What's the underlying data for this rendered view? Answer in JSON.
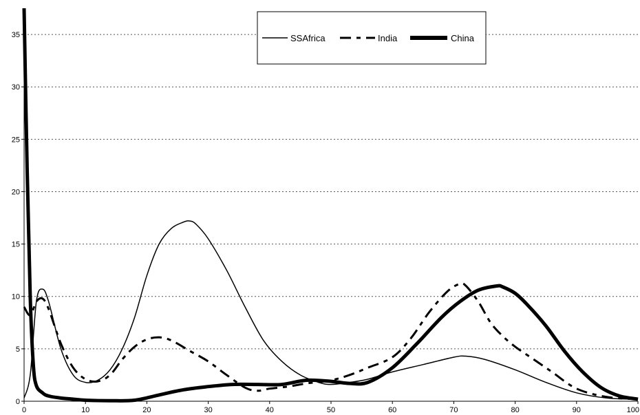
{
  "chart_data": {
    "type": "line",
    "title": "",
    "xlabel": "",
    "ylabel": "",
    "xlim": [
      0,
      100
    ],
    "ylim": [
      0,
      37.5
    ],
    "x_ticks": [
      0,
      10,
      20,
      30,
      40,
      50,
      60,
      70,
      80,
      90,
      100
    ],
    "y_ticks": [
      0,
      5,
      10,
      15,
      20,
      25,
      30,
      35
    ],
    "grid": "horizontal dotted",
    "legend_position": "top-center",
    "series": [
      {
        "name": "SSAfrica",
        "style": "thin-solid",
        "color": "#000000",
        "x": [
          0,
          1,
          2,
          3,
          4,
          6,
          8,
          10,
          12,
          14,
          16,
          18,
          20,
          22,
          24,
          26,
          27,
          28,
          30,
          33,
          36,
          39,
          42,
          45,
          48,
          50,
          53,
          56,
          60,
          65,
          70,
          72,
          75,
          80,
          85,
          90,
          95,
          100
        ],
        "y": [
          0.3,
          2.5,
          9.5,
          10.7,
          9.5,
          5.0,
          2.5,
          1.8,
          2.0,
          3.0,
          5.0,
          8.0,
          12.0,
          15.0,
          16.5,
          17.1,
          17.2,
          16.9,
          15.5,
          12.5,
          9.0,
          5.8,
          3.8,
          2.5,
          1.8,
          1.6,
          1.8,
          2.1,
          2.8,
          3.5,
          4.2,
          4.3,
          4.0,
          3.0,
          1.8,
          0.8,
          0.3,
          0.2
        ]
      },
      {
        "name": "India",
        "style": "dashed",
        "color": "#000000",
        "x": [
          0,
          1,
          2,
          3,
          4,
          6,
          8,
          10,
          12,
          14,
          16,
          18,
          20,
          22,
          24,
          27,
          30,
          33,
          36,
          38,
          40,
          43,
          46,
          50,
          53,
          56,
          60,
          63,
          66,
          69,
          71,
          72,
          74,
          76,
          78,
          80,
          83,
          86,
          90,
          95,
          100
        ],
        "y": [
          9.0,
          8.2,
          9.5,
          9.8,
          8.8,
          5.5,
          3.2,
          2.1,
          1.9,
          2.5,
          4.0,
          5.2,
          5.9,
          6.1,
          5.8,
          4.8,
          3.8,
          2.5,
          1.3,
          1.0,
          1.2,
          1.4,
          1.7,
          2.0,
          2.5,
          3.2,
          4.2,
          6.0,
          8.5,
          10.5,
          11.2,
          11.0,
          9.5,
          7.5,
          6.2,
          5.2,
          4.0,
          2.8,
          1.2,
          0.4,
          0.2
        ]
      },
      {
        "name": "China",
        "style": "thick-solid",
        "color": "#000000",
        "x": [
          0,
          0.5,
          1,
          1.5,
          2,
          3,
          4,
          6,
          8,
          10,
          14,
          18,
          22,
          26,
          30,
          34,
          38,
          42,
          46,
          50,
          53,
          56,
          60,
          64,
          68,
          71,
          74,
          77,
          78,
          80,
          82,
          85,
          88,
          91,
          94,
          97,
          100
        ],
        "y": [
          37.5,
          22.0,
          10.0,
          3.5,
          1.5,
          0.8,
          0.5,
          0.3,
          0.2,
          0.1,
          0.05,
          0.1,
          0.6,
          1.1,
          1.4,
          1.6,
          1.6,
          1.6,
          2.0,
          1.9,
          1.7,
          1.8,
          3.2,
          5.5,
          8.0,
          9.5,
          10.6,
          11.0,
          10.9,
          10.3,
          9.2,
          7.2,
          4.8,
          2.8,
          1.3,
          0.5,
          0.2
        ]
      }
    ]
  }
}
